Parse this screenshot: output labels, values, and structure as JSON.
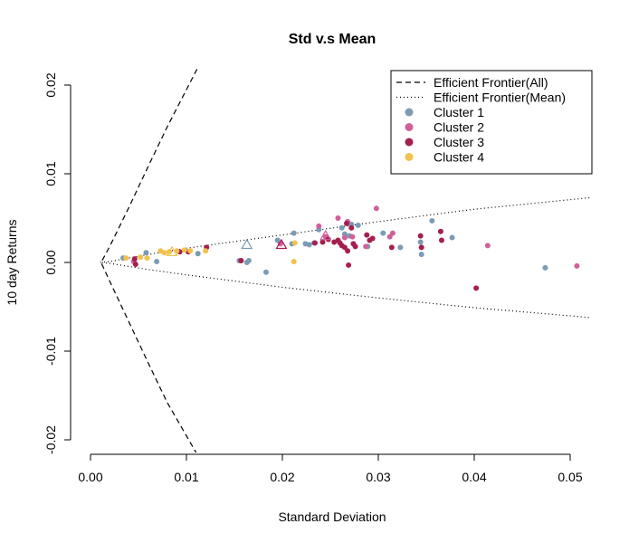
{
  "chart_data": {
    "type": "scatter",
    "title": "Std v.s Mean",
    "xlabel": "Standard Deviation",
    "ylabel": "10 day Returns",
    "xlim": [
      0.0,
      0.052
    ],
    "ylim": [
      -0.022,
      0.022
    ],
    "x_ticks": [
      0.0,
      0.01,
      0.02,
      0.03,
      0.04,
      0.05
    ],
    "x_tick_labels": [
      "0.00",
      "0.01",
      "0.02",
      "0.03",
      "0.04",
      "0.05"
    ],
    "y_ticks": [
      -0.02,
      -0.01,
      0.0,
      0.01,
      0.02
    ],
    "y_tick_labels": [
      "-0.02",
      "-0.01",
      "0.00",
      "0.01",
      "0.02"
    ],
    "grid": false,
    "legend_position": "top-right",
    "legend": [
      {
        "label": "Efficient Frontier(All)",
        "kind": "dashed-line",
        "color": "#000000"
      },
      {
        "label": "Efficient Frontier(Mean)",
        "kind": "dotted-line",
        "color": "#000000"
      },
      {
        "label": "Cluster 1",
        "kind": "point",
        "color": "#7b9bb5"
      },
      {
        "label": "Cluster 2",
        "kind": "point",
        "color": "#d0609a"
      },
      {
        "label": "Cluster 3",
        "kind": "point",
        "color": "#a51f4e"
      },
      {
        "label": "Cluster 4",
        "kind": "point",
        "color": "#f2c14e"
      }
    ],
    "frontier_all": {
      "name": "Efficient Frontier(All)",
      "min_variance_point": [
        0.0011,
        0.0
      ],
      "upper": [
        [
          0.0011,
          0.0
        ],
        [
          0.002,
          0.0018
        ],
        [
          0.004,
          0.0062
        ],
        [
          0.006,
          0.0108
        ],
        [
          0.008,
          0.0153
        ],
        [
          0.0111,
          0.0218
        ]
      ],
      "lower": [
        [
          0.0011,
          0.0
        ],
        [
          0.002,
          -0.0021
        ],
        [
          0.004,
          -0.0067
        ],
        [
          0.006,
          -0.0113
        ],
        [
          0.008,
          -0.0158
        ],
        [
          0.0112,
          -0.0218
        ]
      ]
    },
    "frontier_mean": {
      "name": "Efficient Frontier(Mean)",
      "upper": [
        [
          0.001,
          0.0
        ],
        [
          0.002,
          0.0001
        ],
        [
          0.006,
          0.0009
        ],
        [
          0.01,
          0.0016
        ],
        [
          0.02,
          0.0031
        ],
        [
          0.03,
          0.0046
        ],
        [
          0.04,
          0.006
        ],
        [
          0.052,
          0.0073
        ]
      ],
      "lower": [
        [
          0.001,
          0.0
        ],
        [
          0.002,
          -0.0001
        ],
        [
          0.006,
          -0.0008
        ],
        [
          0.01,
          -0.0014
        ],
        [
          0.02,
          -0.0028
        ],
        [
          0.03,
          -0.004
        ],
        [
          0.04,
          -0.0051
        ],
        [
          0.052,
          -0.0062
        ]
      ]
    },
    "cluster_means": [
      {
        "series": "Cluster 1",
        "x": 0.0163,
        "y": 0.002
      },
      {
        "series": "Cluster 2",
        "x": 0.0245,
        "y": 0.003
      },
      {
        "series": "Cluster 3",
        "x": 0.0199,
        "y": 0.002
      },
      {
        "series": "Cluster 4",
        "x": 0.0085,
        "y": 0.0012
      }
    ],
    "series": [
      {
        "name": "Cluster 1",
        "color": "#7b9bb5",
        "points": [
          [
            0.0034,
            0.0005
          ],
          [
            0.0058,
            0.0011
          ],
          [
            0.0069,
            0.0001
          ],
          [
            0.0112,
            0.001
          ],
          [
            0.0155,
            0.0002
          ],
          [
            0.0163,
            0.0
          ],
          [
            0.0165,
            0.0002
          ],
          [
            0.0183,
            -0.0011
          ],
          [
            0.0195,
            0.0025
          ],
          [
            0.021,
            0.0021
          ],
          [
            0.0212,
            0.0033
          ],
          [
            0.0224,
            0.0021
          ],
          [
            0.0228,
            0.002
          ],
          [
            0.0233,
            0.0022
          ],
          [
            0.0238,
            0.0037
          ],
          [
            0.0262,
            0.0039
          ],
          [
            0.0265,
            0.0032
          ],
          [
            0.027,
            0.003
          ],
          [
            0.0272,
            0.0043
          ],
          [
            0.0279,
            0.0042
          ],
          [
            0.0289,
            0.0018
          ],
          [
            0.0305,
            0.0033
          ],
          [
            0.0323,
            0.0017
          ],
          [
            0.0344,
            0.0023
          ],
          [
            0.0345,
            0.0009
          ],
          [
            0.0356,
            0.0047
          ],
          [
            0.0377,
            0.0028
          ],
          [
            0.0474,
            -0.0006
          ]
        ]
      },
      {
        "name": "Cluster 2",
        "color": "#d0609a",
        "points": [
          [
            0.0045,
            0.0001
          ],
          [
            0.0198,
            0.0021
          ],
          [
            0.0238,
            0.0041
          ],
          [
            0.0245,
            0.0029
          ],
          [
            0.0258,
            0.005
          ],
          [
            0.0265,
            0.0028
          ],
          [
            0.0268,
            0.0046
          ],
          [
            0.0273,
            0.0029
          ],
          [
            0.0287,
            0.0018
          ],
          [
            0.0298,
            0.0061
          ],
          [
            0.0312,
            0.0029
          ],
          [
            0.0315,
            0.0033
          ],
          [
            0.0414,
            0.0019
          ],
          [
            0.0507,
            -0.0004
          ]
        ]
      },
      {
        "name": "Cluster 3",
        "color": "#a51f4e",
        "points": [
          [
            0.0046,
            0.0004
          ],
          [
            0.0047,
            -0.0002
          ],
          [
            0.0093,
            0.0012
          ],
          [
            0.0102,
            0.0012
          ],
          [
            0.0121,
            0.0017
          ],
          [
            0.0157,
            0.0002
          ],
          [
            0.0234,
            0.0022
          ],
          [
            0.0242,
            0.0023
          ],
          [
            0.0248,
            0.0026
          ],
          [
            0.0254,
            0.0023
          ],
          [
            0.0258,
            0.0025
          ],
          [
            0.026,
            0.0022
          ],
          [
            0.0262,
            0.0019
          ],
          [
            0.0265,
            0.0017
          ],
          [
            0.0267,
            0.0044
          ],
          [
            0.0268,
            0.0013
          ],
          [
            0.0269,
            -0.0003
          ],
          [
            0.0272,
            0.0039
          ],
          [
            0.0274,
            0.0021
          ],
          [
            0.0276,
            0.0018
          ],
          [
            0.0288,
            0.0031
          ],
          [
            0.0291,
            0.0025
          ],
          [
            0.0294,
            0.0027
          ],
          [
            0.0314,
            0.0017
          ],
          [
            0.0344,
            0.003
          ],
          [
            0.0345,
            0.0017
          ],
          [
            0.0365,
            0.0035
          ],
          [
            0.0366,
            0.0025
          ],
          [
            0.0402,
            -0.0029
          ]
        ]
      },
      {
        "name": "Cluster 4",
        "color": "#f2c14e",
        "points": [
          [
            0.0037,
            0.0005
          ],
          [
            0.0052,
            0.0006
          ],
          [
            0.0059,
            0.0005
          ],
          [
            0.0073,
            0.0013
          ],
          [
            0.0077,
            0.0011
          ],
          [
            0.0082,
            0.0012
          ],
          [
            0.009,
            0.0013
          ],
          [
            0.0098,
            0.0014
          ],
          [
            0.0104,
            0.0013
          ],
          [
            0.012,
            0.0013
          ],
          [
            0.0213,
            0.0022
          ],
          [
            0.0212,
            0.0001
          ]
        ]
      }
    ]
  }
}
